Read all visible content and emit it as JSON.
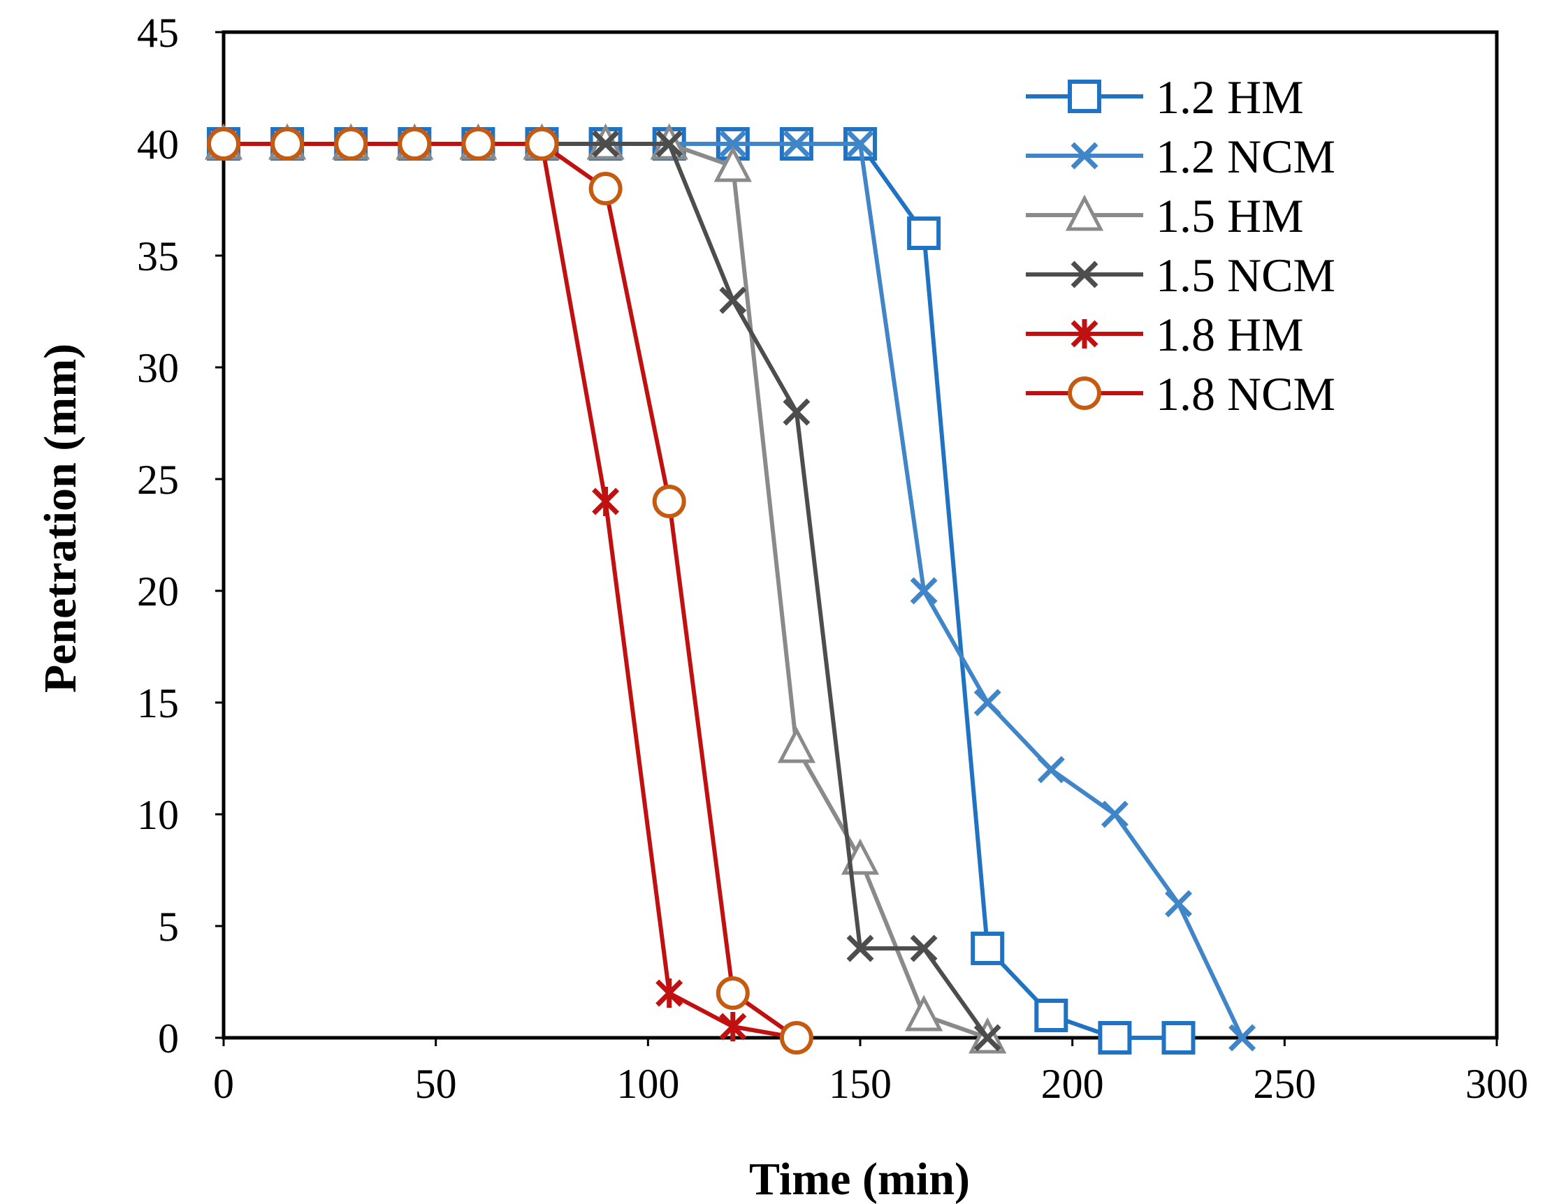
{
  "chart_data": {
    "type": "line",
    "title": "",
    "xlabel": "Time (min)",
    "ylabel": "Penetration (mm)",
    "xlim": [
      0,
      300
    ],
    "ylim": [
      0,
      45
    ],
    "xticks": [
      0,
      50,
      100,
      150,
      200,
      250,
      300
    ],
    "yticks": [
      0,
      5,
      10,
      15,
      20,
      25,
      30,
      35,
      40,
      45
    ],
    "grid": false,
    "legend_position": "top-right",
    "series": [
      {
        "name": "1.2 HM",
        "color": "#1f73c2",
        "marker": "square",
        "x": [
          0,
          15,
          30,
          45,
          60,
          75,
          90,
          105,
          120,
          135,
          150,
          165,
          180,
          195,
          210,
          225
        ],
        "y": [
          40,
          40,
          40,
          40,
          40,
          40,
          40,
          40,
          40,
          40,
          40,
          36,
          4,
          1,
          0,
          0
        ]
      },
      {
        "name": "1.2 NCM",
        "color": "#3f85c8",
        "marker": "x",
        "x": [
          0,
          15,
          30,
          45,
          60,
          75,
          90,
          105,
          120,
          135,
          150,
          165,
          180,
          195,
          210,
          225,
          240
        ],
        "y": [
          40,
          40,
          40,
          40,
          40,
          40,
          40,
          40,
          40,
          40,
          40,
          20,
          15,
          12,
          10,
          6,
          0
        ]
      },
      {
        "name": "1.5 HM",
        "color": "#8a8a8a",
        "marker": "triangle",
        "x": [
          0,
          15,
          30,
          45,
          60,
          75,
          90,
          105,
          120,
          135,
          150,
          165,
          180
        ],
        "y": [
          40,
          40,
          40,
          40,
          40,
          40,
          40,
          40,
          39,
          13,
          8,
          1,
          0
        ]
      },
      {
        "name": "1.5 NCM",
        "color": "#4d4d4d",
        "marker": "x",
        "x": [
          0,
          15,
          30,
          45,
          60,
          75,
          90,
          105,
          120,
          135,
          150,
          165,
          180
        ],
        "y": [
          40,
          40,
          40,
          40,
          40,
          40,
          40,
          40,
          33,
          28,
          4,
          4,
          0
        ]
      },
      {
        "name": "1.8 HM",
        "color": "#c01010",
        "marker": "asterisk",
        "x": [
          0,
          15,
          30,
          45,
          60,
          75,
          90,
          105,
          120,
          135
        ],
        "y": [
          40,
          40,
          40,
          40,
          40,
          40,
          24,
          2,
          0.5,
          0
        ]
      },
      {
        "name": "1.8 NCM",
        "color": "#c55a11",
        "line_color": "#c01010",
        "marker": "circle",
        "x": [
          0,
          15,
          30,
          45,
          60,
          75,
          90,
          105,
          120,
          135
        ],
        "y": [
          40,
          40,
          40,
          40,
          40,
          40,
          38,
          24,
          2,
          0
        ]
      }
    ]
  }
}
